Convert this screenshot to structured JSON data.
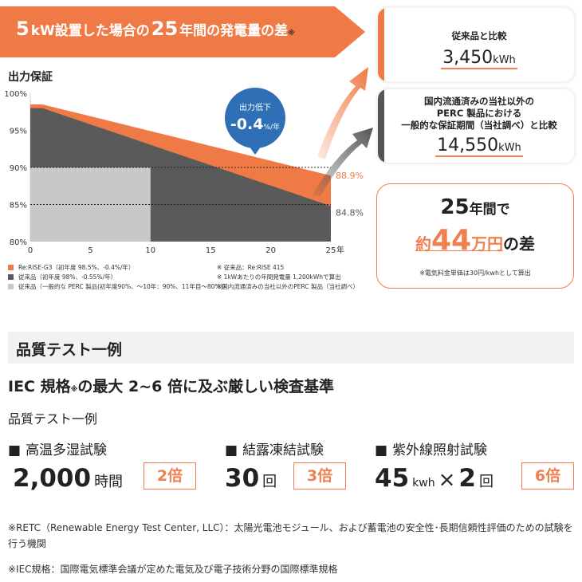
{
  "banner": {
    "prefix": "5",
    "unit": "kW",
    "mid": "設置した場合の",
    "years": "25",
    "suffix": "年間の発電量の差",
    "mark": "※"
  },
  "y_axis_title": "出力保証",
  "badge": {
    "line1": "出力低下",
    "value": "-0.4",
    "unit": "%/年"
  },
  "cards": [
    {
      "title": "従来品と比較",
      "value": "3,450",
      "unit": "kWh",
      "accent": "#f08050"
    },
    {
      "title_lines": [
        "国内流通済みの当社以外の",
        "PERC 製品における",
        "一般的な保証期間（当社調べ）と比較"
      ],
      "value": "14,550",
      "unit": "kWh",
      "accent": "#555555"
    }
  ],
  "bubble": {
    "years": "25",
    "years_suffix": "年間",
    "de": "で",
    "yaku": "約",
    "amount": "44",
    "man_en": "万円",
    "no_sa": "の差",
    "footnote": "※電気料金単価は30円/kwhとして算出"
  },
  "chart_data": {
    "type": "area",
    "xlim": [
      0,
      27
    ],
    "ylim": [
      80,
      100
    ],
    "xticks": [
      "0",
      "5",
      "10",
      "15",
      "20",
      "25"
    ],
    "xtick_values": [
      0,
      5,
      10,
      15,
      20,
      25
    ],
    "x_unit": "年",
    "yticks": [
      "80%",
      "85%",
      "90%",
      "95%",
      "100%"
    ],
    "ytick_values": [
      80,
      85,
      90,
      95,
      100
    ],
    "dotted_lines": [
      90,
      85
    ],
    "series": [
      {
        "name": "Re:RISE-G3（初年度 98.5%、-0.4%/年）",
        "color": "#f07a45",
        "x": [
          0,
          1,
          25
        ],
        "y": [
          98.5,
          98.5,
          88.9
        ],
        "end_label": "88.9%"
      },
      {
        "name": "従来品（初年度 98%、-0.55%/年）",
        "color": "#5a5a5a",
        "x": [
          0,
          1,
          25
        ],
        "y": [
          98,
          98,
          84.8
        ],
        "end_label": "84.8%"
      },
      {
        "name": "従来品（一般的な PERC 製品(初年度90%、～10年：90%、11年目～80%)）",
        "color": "#c8c8c8",
        "x": [
          0,
          10,
          10
        ],
        "y": [
          90,
          90,
          80
        ]
      }
    ],
    "legend_notes": [
      "※ 従来品：Re:RISE 415",
      "※ 1kWあたりの年間発電量 1,200kWhで算出",
      "※国内流通済みの当社以外のPERC 製品（当社調べ）"
    ]
  },
  "quality": {
    "section_title": "品質テスト一例",
    "headline_a": "IEC 規格",
    "headline_mark": "※",
    "headline_b": "の最大 2~6 倍に及ぶ厳しい検査基準",
    "subtitle": "品質テスト一例",
    "tests": [
      {
        "name": "高温多湿試験",
        "value": "2,000",
        "unit": "時間",
        "ratio": "2倍"
      },
      {
        "name": "結露凍結試験",
        "value": "30",
        "unit": "回",
        "ratio": "3倍"
      },
      {
        "name": "紫外線照射試験",
        "value": "45",
        "unit": "kwh",
        "times": "×",
        "value2": "2",
        "unit2": "回",
        "ratio": "6倍"
      }
    ],
    "bullet": "■",
    "notes": [
      "※RETC（Renewable Energy Test Center, LLC）：太陽光電池モジュール、および蓄電池の安全性･長期信頼性評価のための試験を行う機関",
      "※IEC規格：国際電気標準会議が定めた電気及び電子技術分野の国際標準規格"
    ]
  },
  "colors": {
    "orange": "#f07a45",
    "dark": "#5a5a5a",
    "light": "#c8c8c8",
    "badge": "#2f6fb5"
  }
}
